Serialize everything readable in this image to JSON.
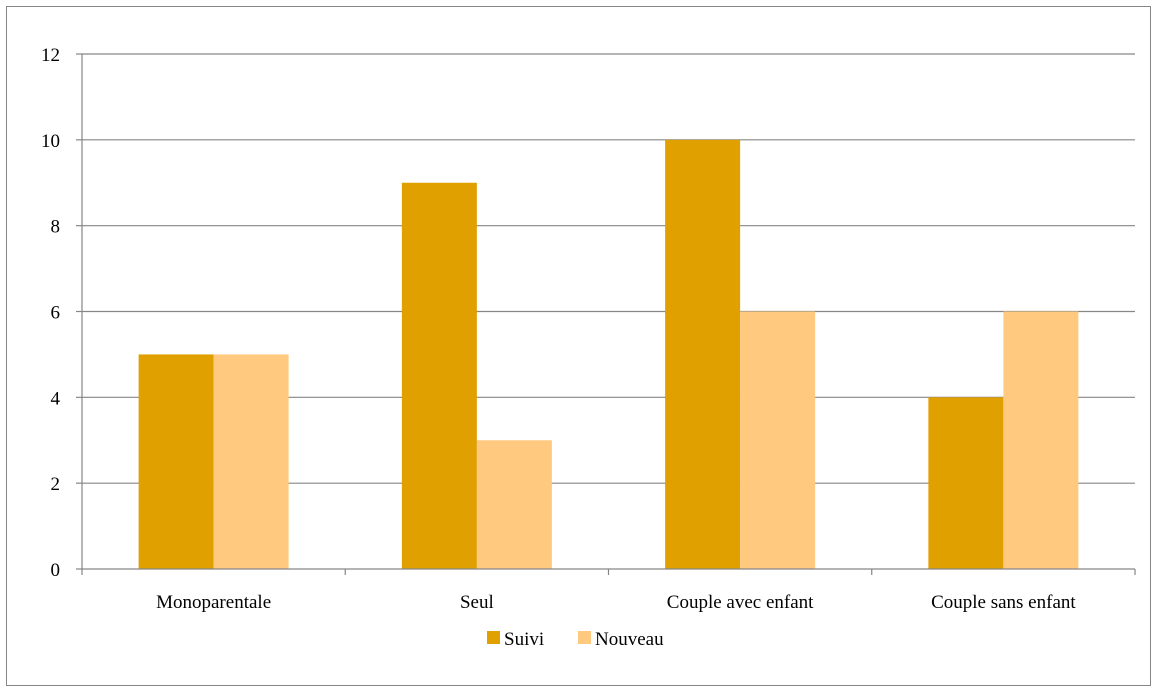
{
  "chart_data": {
    "type": "bar",
    "title": "",
    "xlabel": "",
    "ylabel": "",
    "categories": [
      "Monoparentale",
      "Seul",
      "Couple avec enfant",
      "Couple sans enfant"
    ],
    "series": [
      {
        "name": "Suivi",
        "values": [
          5,
          9,
          10,
          4
        ],
        "color": "#E0A000"
      },
      {
        "name": "Nouveau",
        "values": [
          5,
          3,
          6,
          6
        ],
        "color": "#FFC980"
      }
    ],
    "ylim": [
      0,
      12
    ],
    "yticks": [
      0,
      2,
      4,
      6,
      8,
      10,
      12
    ],
    "grid": true,
    "legend_position": "bottom"
  }
}
